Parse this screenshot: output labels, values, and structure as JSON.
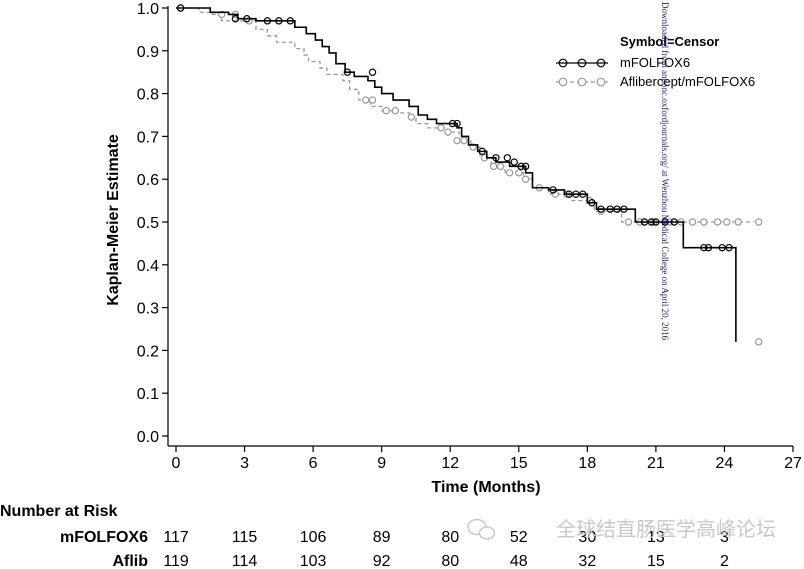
{
  "chart_data": {
    "type": "line",
    "xlabel": "Time (Months)",
    "ylabel": "Kaplan-Meier Estimate",
    "xlim": [
      0,
      27
    ],
    "ylim": [
      0,
      1
    ],
    "xticks": [
      0,
      3,
      6,
      9,
      12,
      15,
      18,
      21,
      24,
      27
    ],
    "yticks": [
      0.0,
      0.1,
      0.2,
      0.3,
      0.4,
      0.5,
      0.6,
      0.7,
      0.8,
      0.9,
      1.0
    ],
    "ytick_labels": [
      "0.0",
      "0.1",
      "0.2",
      "0.3",
      "0.4",
      "0.5",
      "0.6",
      "0.7",
      "0.8",
      "0.9",
      "1.0"
    ],
    "grid": false,
    "legend": {
      "title": "Symbol=Censor",
      "position": "top-right"
    },
    "series": [
      {
        "name": "mFOLFOX6",
        "color": "#000000",
        "line_style": "solid",
        "steps": [
          [
            0,
            1.0
          ],
          [
            1.5,
            0.99
          ],
          [
            2.3,
            0.985
          ],
          [
            2.7,
            0.975
          ],
          [
            3.5,
            0.97
          ],
          [
            5.2,
            0.955
          ],
          [
            5.7,
            0.94
          ],
          [
            6.1,
            0.925
          ],
          [
            6.4,
            0.91
          ],
          [
            6.7,
            0.895
          ],
          [
            7.0,
            0.87
          ],
          [
            7.4,
            0.85
          ],
          [
            7.8,
            0.84
          ],
          [
            8.4,
            0.83
          ],
          [
            8.7,
            0.815
          ],
          [
            9.0,
            0.8
          ],
          [
            9.5,
            0.785
          ],
          [
            10.2,
            0.77
          ],
          [
            10.6,
            0.75
          ],
          [
            11.0,
            0.74
          ],
          [
            11.4,
            0.73
          ],
          [
            12.3,
            0.72
          ],
          [
            12.5,
            0.7
          ],
          [
            12.8,
            0.68
          ],
          [
            13.2,
            0.665
          ],
          [
            13.6,
            0.65
          ],
          [
            14.0,
            0.64
          ],
          [
            14.6,
            0.63
          ],
          [
            15.3,
            0.615
          ],
          [
            15.6,
            0.58
          ],
          [
            16.3,
            0.575
          ],
          [
            17.0,
            0.565
          ],
          [
            18.0,
            0.545
          ],
          [
            18.4,
            0.53
          ],
          [
            20.1,
            0.5
          ],
          [
            22.2,
            0.44
          ],
          [
            24.5,
            0.22
          ]
        ],
        "end_x": 24.5,
        "censor_x": [
          0.2,
          2.6,
          3.1,
          4.0,
          4.5,
          5.0,
          7.5,
          8.6,
          12.1,
          12.3,
          13.4,
          14.0,
          14.5,
          14.8,
          15.1,
          15.3,
          16.5,
          17.2,
          17.5,
          17.8,
          18.2,
          18.6,
          19.0,
          19.3,
          19.6,
          20.5,
          20.8,
          21.0,
          21.4,
          21.8,
          23.1,
          23.3,
          23.9,
          24.2
        ],
        "censor_y": [
          1.0,
          0.975,
          0.975,
          0.97,
          0.97,
          0.97,
          0.85,
          0.85,
          0.73,
          0.73,
          0.665,
          0.65,
          0.65,
          0.64,
          0.63,
          0.63,
          0.575,
          0.565,
          0.565,
          0.565,
          0.545,
          0.53,
          0.53,
          0.53,
          0.53,
          0.5,
          0.5,
          0.5,
          0.5,
          0.5,
          0.44,
          0.44,
          0.44,
          0.44
        ]
      },
      {
        "name": "Aflibercept/mFOLFOX6",
        "color": "#999999",
        "line_style": "dashed",
        "steps": [
          [
            0,
            1.0
          ],
          [
            1.0,
            0.99
          ],
          [
            1.5,
            0.985
          ],
          [
            2.0,
            0.97
          ],
          [
            3.5,
            0.95
          ],
          [
            4.0,
            0.935
          ],
          [
            4.4,
            0.92
          ],
          [
            5.2,
            0.905
          ],
          [
            5.6,
            0.89
          ],
          [
            5.8,
            0.875
          ],
          [
            6.3,
            0.86
          ],
          [
            6.6,
            0.845
          ],
          [
            7.3,
            0.83
          ],
          [
            7.6,
            0.81
          ],
          [
            8.0,
            0.785
          ],
          [
            8.5,
            0.77
          ],
          [
            9.0,
            0.76
          ],
          [
            9.5,
            0.755
          ],
          [
            10.2,
            0.745
          ],
          [
            10.5,
            0.73
          ],
          [
            11.0,
            0.72
          ],
          [
            11.8,
            0.71
          ],
          [
            12.4,
            0.69
          ],
          [
            12.9,
            0.675
          ],
          [
            13.3,
            0.65
          ],
          [
            13.8,
            0.63
          ],
          [
            14.4,
            0.615
          ],
          [
            15.2,
            0.6
          ],
          [
            15.6,
            0.58
          ],
          [
            16.3,
            0.565
          ],
          [
            17.3,
            0.55
          ],
          [
            18.3,
            0.525
          ],
          [
            19.5,
            0.5
          ]
        ],
        "end_x": 25.3,
        "censor_x": [
          0.2,
          2.0,
          2.6,
          3.2,
          8.3,
          8.6,
          9.2,
          9.6,
          10.3,
          11.6,
          11.9,
          12.3,
          12.6,
          13.0,
          13.5,
          13.9,
          14.2,
          14.6,
          15.0,
          15.3,
          15.9,
          16.6,
          17.1,
          18.1,
          18.6,
          19.8,
          20.3,
          20.9,
          21.6,
          22.1,
          22.6,
          23.1,
          23.7,
          24.1,
          24.6,
          25.5
        ],
        "censor_y": [
          1.0,
          0.985,
          0.985,
          0.97,
          0.785,
          0.785,
          0.76,
          0.76,
          0.745,
          0.72,
          0.71,
          0.69,
          0.69,
          0.675,
          0.65,
          0.63,
          0.63,
          0.615,
          0.615,
          0.6,
          0.58,
          0.565,
          0.565,
          0.55,
          0.525,
          0.5,
          0.5,
          0.5,
          0.5,
          0.5,
          0.5,
          0.5,
          0.5,
          0.5,
          0.5,
          0.5
        ]
      }
    ],
    "final_censor": {
      "x": 25.5,
      "y": 0.22,
      "color": "#999999"
    },
    "risk_table": {
      "title": "Number at Risk",
      "times": [
        0,
        3,
        6,
        9,
        12,
        15,
        18,
        21,
        24
      ],
      "rows": [
        {
          "label": "mFOLFOX6",
          "values": [
            "117",
            "115",
            "106",
            "89",
            "80",
            "52",
            "30",
            "13",
            "3"
          ]
        },
        {
          "label": "Aflib",
          "values": [
            "119",
            "114",
            "103",
            "92",
            "80",
            "48",
            "32",
            "15",
            "2"
          ]
        }
      ]
    }
  },
  "stamp_text": "Downloaded from annonc.oxfordjournals.org/ at Wenzhou Medical College on April 20, 2016",
  "watermark_text": "全球结直肠医学高峰论坛"
}
